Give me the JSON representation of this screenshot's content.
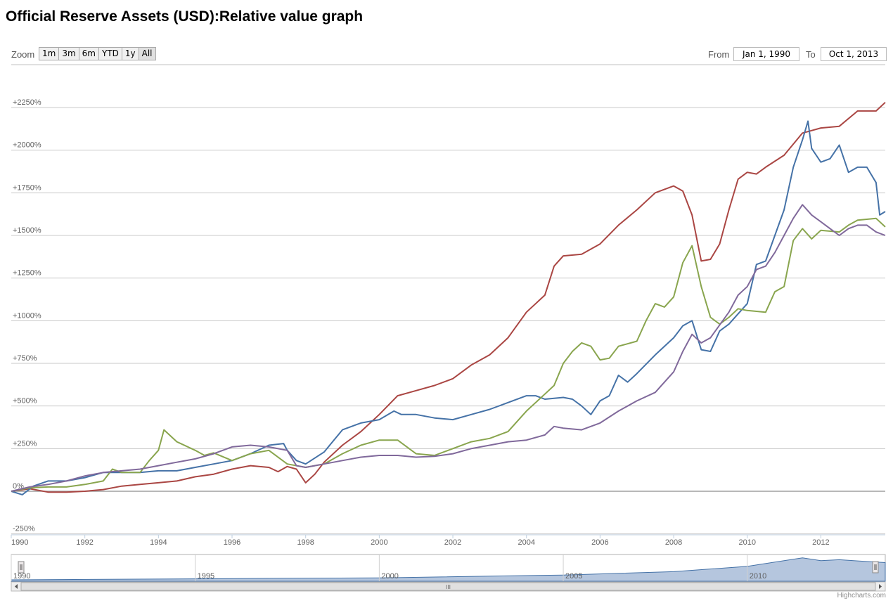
{
  "title": "Official Reserve Assets (USD):Relative value graph",
  "zoom": {
    "label": "Zoom",
    "buttons": [
      "1m",
      "3m",
      "6m",
      "YTD",
      "1y",
      "All"
    ]
  },
  "range": {
    "from_label": "From",
    "from_value": "Jan 1, 1990",
    "to_label": "To",
    "to_value": "Oct 1, 2013"
  },
  "credit": "Highcharts.com",
  "navigator": {
    "labels": [
      "1990",
      "1995",
      "2000",
      "2005",
      "2010"
    ],
    "scrollbar_grip": "III"
  },
  "chart_data": {
    "type": "line",
    "title": "Official Reserve Assets (USD):Relative value graph",
    "xlim": [
      1990,
      2013.75
    ],
    "ylim": [
      -250,
      2300
    ],
    "ytick_values": [
      -250,
      0,
      250,
      500,
      750,
      1000,
      1250,
      1500,
      1750,
      2000,
      2250
    ],
    "ytick_labels": [
      "-250%",
      "0%",
      "+250%",
      "+500%",
      "+750%",
      "+1000%",
      "+1250%",
      "+1500%",
      "+1750%",
      "+2000%",
      "+2250%"
    ],
    "xtick_values": [
      1990,
      1992,
      1994,
      1996,
      1998,
      2000,
      2002,
      2004,
      2006,
      2008,
      2010,
      2012
    ],
    "xtick_labels": [
      "1990",
      "1992",
      "1994",
      "1996",
      "1998",
      "2000",
      "2002",
      "2004",
      "2006",
      "2008",
      "2010",
      "2012"
    ],
    "grid": true,
    "series": [
      {
        "color": "#aa4643",
        "points": [
          [
            1990,
            0
          ],
          [
            1990.5,
            15
          ],
          [
            1991,
            -5
          ],
          [
            1991.5,
            -5
          ],
          [
            1992,
            0
          ],
          [
            1992.5,
            10
          ],
          [
            1993,
            30
          ],
          [
            1993.5,
            40
          ],
          [
            1994,
            50
          ],
          [
            1994.5,
            60
          ],
          [
            1995,
            85
          ],
          [
            1995.5,
            100
          ],
          [
            1996,
            130
          ],
          [
            1996.5,
            150
          ],
          [
            1997,
            140
          ],
          [
            1997.25,
            115
          ],
          [
            1997.5,
            145
          ],
          [
            1997.75,
            130
          ],
          [
            1998,
            50
          ],
          [
            1998.25,
            100
          ],
          [
            1998.5,
            170
          ],
          [
            1999,
            270
          ],
          [
            1999.5,
            350
          ],
          [
            2000,
            450
          ],
          [
            2000.5,
            560
          ],
          [
            2001,
            590
          ],
          [
            2001.5,
            620
          ],
          [
            2002,
            660
          ],
          [
            2002.5,
            740
          ],
          [
            2003,
            800
          ],
          [
            2003.5,
            900
          ],
          [
            2004,
            1050
          ],
          [
            2004.5,
            1150
          ],
          [
            2004.75,
            1320
          ],
          [
            2005,
            1380
          ],
          [
            2005.5,
            1390
          ],
          [
            2006,
            1450
          ],
          [
            2006.5,
            1560
          ],
          [
            2007,
            1650
          ],
          [
            2007.5,
            1750
          ],
          [
            2008,
            1790
          ],
          [
            2008.25,
            1760
          ],
          [
            2008.5,
            1620
          ],
          [
            2008.75,
            1350
          ],
          [
            2009,
            1360
          ],
          [
            2009.25,
            1450
          ],
          [
            2009.5,
            1650
          ],
          [
            2009.75,
            1830
          ],
          [
            2010,
            1870
          ],
          [
            2010.25,
            1860
          ],
          [
            2010.5,
            1900
          ],
          [
            2011,
            1970
          ],
          [
            2011.5,
            2100
          ],
          [
            2012,
            2130
          ],
          [
            2012.5,
            2140
          ],
          [
            2013,
            2230
          ],
          [
            2013.5,
            2230
          ],
          [
            2013.75,
            2280
          ]
        ]
      },
      {
        "color": "#4572a7",
        "points": [
          [
            1990,
            0
          ],
          [
            1990.3,
            -20
          ],
          [
            1990.6,
            30
          ],
          [
            1991,
            60
          ],
          [
            1991.5,
            60
          ],
          [
            1992,
            80
          ],
          [
            1992.5,
            110
          ],
          [
            1993,
            110
          ],
          [
            1993.5,
            110
          ],
          [
            1994,
            120
          ],
          [
            1994.5,
            120
          ],
          [
            1995,
            140
          ],
          [
            1995.5,
            160
          ],
          [
            1996,
            180
          ],
          [
            1996.5,
            220
          ],
          [
            1997,
            270
          ],
          [
            1997.4,
            280
          ],
          [
            1997.5,
            240
          ],
          [
            1997.75,
            180
          ],
          [
            1998,
            160
          ],
          [
            1998.5,
            230
          ],
          [
            1999,
            360
          ],
          [
            1999.5,
            400
          ],
          [
            2000,
            420
          ],
          [
            2000.4,
            470
          ],
          [
            2000.6,
            450
          ],
          [
            2001,
            450
          ],
          [
            2001.5,
            430
          ],
          [
            2002,
            420
          ],
          [
            2002.5,
            450
          ],
          [
            2003,
            480
          ],
          [
            2003.5,
            520
          ],
          [
            2004,
            560
          ],
          [
            2004.25,
            560
          ],
          [
            2004.5,
            540
          ],
          [
            2005,
            550
          ],
          [
            2005.25,
            540
          ],
          [
            2005.5,
            500
          ],
          [
            2005.75,
            450
          ],
          [
            2006,
            530
          ],
          [
            2006.25,
            560
          ],
          [
            2006.5,
            680
          ],
          [
            2006.75,
            640
          ],
          [
            2007,
            690
          ],
          [
            2007.5,
            800
          ],
          [
            2008,
            900
          ],
          [
            2008.25,
            970
          ],
          [
            2008.5,
            1000
          ],
          [
            2008.75,
            830
          ],
          [
            2009,
            820
          ],
          [
            2009.25,
            940
          ],
          [
            2009.5,
            980
          ],
          [
            2010,
            1100
          ],
          [
            2010.25,
            1330
          ],
          [
            2010.5,
            1350
          ],
          [
            2010.75,
            1500
          ],
          [
            2011,
            1650
          ],
          [
            2011.25,
            1900
          ],
          [
            2011.5,
            2060
          ],
          [
            2011.65,
            2170
          ],
          [
            2011.75,
            2010
          ],
          [
            2012,
            1930
          ],
          [
            2012.25,
            1950
          ],
          [
            2012.5,
            2030
          ],
          [
            2012.75,
            1870
          ],
          [
            2013,
            1900
          ],
          [
            2013.25,
            1900
          ],
          [
            2013.5,
            1810
          ],
          [
            2013.6,
            1620
          ],
          [
            2013.75,
            1640
          ]
        ]
      },
      {
        "color": "#89a54e",
        "points": [
          [
            1990,
            0
          ],
          [
            1990.5,
            20
          ],
          [
            1991,
            25
          ],
          [
            1991.5,
            25
          ],
          [
            1992,
            40
          ],
          [
            1992.5,
            60
          ],
          [
            1992.75,
            130
          ],
          [
            1993,
            110
          ],
          [
            1993.5,
            110
          ],
          [
            1993.75,
            180
          ],
          [
            1994,
            240
          ],
          [
            1994.15,
            360
          ],
          [
            1994.3,
            330
          ],
          [
            1994.5,
            290
          ],
          [
            1995,
            240
          ],
          [
            1995.25,
            210
          ],
          [
            1995.5,
            225
          ],
          [
            1996,
            180
          ],
          [
            1996.5,
            220
          ],
          [
            1997,
            240
          ],
          [
            1997.5,
            160
          ],
          [
            1998,
            140
          ],
          [
            1998.5,
            160
          ],
          [
            1999,
            220
          ],
          [
            1999.5,
            270
          ],
          [
            2000,
            300
          ],
          [
            2000.5,
            300
          ],
          [
            2001,
            220
          ],
          [
            2001.5,
            210
          ],
          [
            2002,
            250
          ],
          [
            2002.5,
            290
          ],
          [
            2003,
            310
          ],
          [
            2003.5,
            350
          ],
          [
            2004,
            470
          ],
          [
            2004.5,
            570
          ],
          [
            2004.75,
            620
          ],
          [
            2005,
            750
          ],
          [
            2005.25,
            820
          ],
          [
            2005.5,
            870
          ],
          [
            2005.75,
            850
          ],
          [
            2006,
            770
          ],
          [
            2006.25,
            780
          ],
          [
            2006.5,
            850
          ],
          [
            2007,
            880
          ],
          [
            2007.25,
            1000
          ],
          [
            2007.5,
            1100
          ],
          [
            2007.75,
            1080
          ],
          [
            2008,
            1140
          ],
          [
            2008.25,
            1340
          ],
          [
            2008.5,
            1440
          ],
          [
            2008.75,
            1200
          ],
          [
            2009,
            1020
          ],
          [
            2009.25,
            980
          ],
          [
            2009.5,
            1020
          ],
          [
            2009.75,
            1070
          ],
          [
            2010,
            1060
          ],
          [
            2010.5,
            1050
          ],
          [
            2010.75,
            1170
          ],
          [
            2011,
            1200
          ],
          [
            2011.25,
            1470
          ],
          [
            2011.5,
            1540
          ],
          [
            2011.75,
            1480
          ],
          [
            2012,
            1530
          ],
          [
            2012.5,
            1520
          ],
          [
            2012.75,
            1560
          ],
          [
            2013,
            1590
          ],
          [
            2013.5,
            1600
          ],
          [
            2013.75,
            1550
          ]
        ]
      },
      {
        "color": "#80699b",
        "points": [
          [
            1990,
            0
          ],
          [
            1990.5,
            25
          ],
          [
            1991,
            40
          ],
          [
            1991.5,
            60
          ],
          [
            1992,
            90
          ],
          [
            1992.5,
            110
          ],
          [
            1993,
            120
          ],
          [
            1993.5,
            130
          ],
          [
            1994,
            150
          ],
          [
            1994.5,
            170
          ],
          [
            1995,
            190
          ],
          [
            1995.5,
            220
          ],
          [
            1996,
            260
          ],
          [
            1996.5,
            270
          ],
          [
            1997,
            260
          ],
          [
            1997.5,
            240
          ],
          [
            1997.75,
            150
          ],
          [
            1998,
            140
          ],
          [
            1998.5,
            160
          ],
          [
            1999,
            180
          ],
          [
            1999.5,
            200
          ],
          [
            2000,
            210
          ],
          [
            2000.5,
            210
          ],
          [
            2001,
            200
          ],
          [
            2001.5,
            205
          ],
          [
            2002,
            220
          ],
          [
            2002.5,
            250
          ],
          [
            2003,
            270
          ],
          [
            2003.5,
            290
          ],
          [
            2004,
            300
          ],
          [
            2004.5,
            330
          ],
          [
            2004.75,
            380
          ],
          [
            2005,
            370
          ],
          [
            2005.5,
            360
          ],
          [
            2006,
            400
          ],
          [
            2006.5,
            470
          ],
          [
            2007,
            530
          ],
          [
            2007.5,
            580
          ],
          [
            2008,
            700
          ],
          [
            2008.25,
            820
          ],
          [
            2008.5,
            920
          ],
          [
            2008.75,
            870
          ],
          [
            2009,
            900
          ],
          [
            2009.5,
            1050
          ],
          [
            2009.75,
            1150
          ],
          [
            2010,
            1200
          ],
          [
            2010.25,
            1300
          ],
          [
            2010.5,
            1320
          ],
          [
            2010.75,
            1400
          ],
          [
            2011,
            1500
          ],
          [
            2011.25,
            1600
          ],
          [
            2011.5,
            1680
          ],
          [
            2011.75,
            1620
          ],
          [
            2012,
            1580
          ],
          [
            2012.25,
            1540
          ],
          [
            2012.5,
            1500
          ],
          [
            2012.75,
            1540
          ],
          [
            2013,
            1560
          ],
          [
            2013.25,
            1560
          ],
          [
            2013.5,
            1520
          ],
          [
            2013.75,
            1500
          ]
        ]
      }
    ],
    "navigator_values": [
      [
        1990,
        6
      ],
      [
        1995,
        10
      ],
      [
        2000,
        14
      ],
      [
        2005,
        26
      ],
      [
        2008,
        40
      ],
      [
        2010,
        62
      ],
      [
        2011,
        86
      ],
      [
        2011.5,
        98
      ],
      [
        2012,
        86
      ],
      [
        2012.5,
        90
      ],
      [
        2013,
        85
      ],
      [
        2013.75,
        78
      ]
    ]
  }
}
